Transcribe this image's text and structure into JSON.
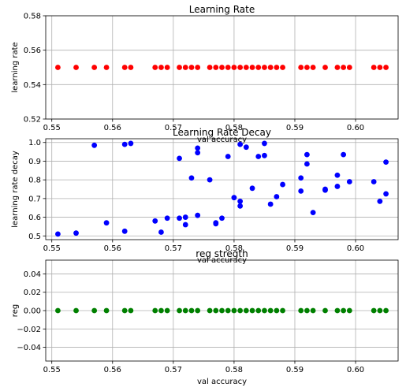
{
  "chart_data": [
    {
      "type": "scatter",
      "title": "Learning Rate",
      "xlabel": "val accuracy",
      "ylabel": "learning rate",
      "xlim": [
        0.549,
        0.607
      ],
      "ylim": [
        0.52,
        0.58
      ],
      "xticks": [
        "0.55",
        "0.56",
        "0.57",
        "0.58",
        "0.59",
        "0.60"
      ],
      "xtick_values": [
        0.55,
        0.56,
        0.57,
        0.58,
        0.59,
        0.6
      ],
      "yticks": [
        "0.52",
        "0.54",
        "0.56",
        "0.58"
      ],
      "ytick_values": [
        0.52,
        0.54,
        0.56,
        0.58
      ],
      "grid": true,
      "color": "#ff0000",
      "x": [
        0.551,
        0.554,
        0.557,
        0.559,
        0.562,
        0.563,
        0.567,
        0.568,
        0.569,
        0.571,
        0.572,
        0.573,
        0.574,
        0.576,
        0.577,
        0.578,
        0.579,
        0.58,
        0.581,
        0.582,
        0.583,
        0.584,
        0.585,
        0.586,
        0.587,
        0.588,
        0.591,
        0.592,
        0.593,
        0.595,
        0.597,
        0.598,
        0.599,
        0.603,
        0.604,
        0.605
      ],
      "y": [
        0.55,
        0.55,
        0.55,
        0.55,
        0.55,
        0.55,
        0.55,
        0.55,
        0.55,
        0.55,
        0.55,
        0.55,
        0.55,
        0.55,
        0.55,
        0.55,
        0.55,
        0.55,
        0.55,
        0.55,
        0.55,
        0.55,
        0.55,
        0.55,
        0.55,
        0.55,
        0.55,
        0.55,
        0.55,
        0.55,
        0.55,
        0.55,
        0.55,
        0.55,
        0.55,
        0.55
      ]
    },
    {
      "type": "scatter",
      "title": "Learning Rate Decay",
      "xlabel": "val accuracy",
      "ylabel": "learning rate decay",
      "xlim": [
        0.549,
        0.607
      ],
      "ylim": [
        0.48,
        1.02
      ],
      "xticks": [
        "0.55",
        "0.56",
        "0.57",
        "0.58",
        "0.59",
        "0.60"
      ],
      "xtick_values": [
        0.55,
        0.56,
        0.57,
        0.58,
        0.59,
        0.6
      ],
      "yticks": [
        "0.5",
        "0.6",
        "0.7",
        "0.8",
        "0.9",
        "1.0"
      ],
      "ytick_values": [
        0.5,
        0.6,
        0.7,
        0.8,
        0.9,
        1.0
      ],
      "grid": true,
      "color": "#0000ff",
      "x": [
        0.551,
        0.554,
        0.557,
        0.559,
        0.562,
        0.562,
        0.563,
        0.567,
        0.568,
        0.569,
        0.571,
        0.571,
        0.572,
        0.572,
        0.573,
        0.574,
        0.574,
        0.574,
        0.576,
        0.577,
        0.577,
        0.578,
        0.579,
        0.58,
        0.581,
        0.581,
        0.581,
        0.582,
        0.583,
        0.584,
        0.585,
        0.585,
        0.586,
        0.587,
        0.588,
        0.591,
        0.591,
        0.592,
        0.592,
        0.593,
        0.595,
        0.595,
        0.597,
        0.597,
        0.598,
        0.599,
        0.603,
        0.604,
        0.605,
        0.605
      ],
      "y": [
        0.51,
        0.515,
        0.985,
        0.57,
        0.525,
        0.99,
        0.995,
        0.58,
        0.52,
        0.595,
        0.915,
        0.595,
        0.56,
        0.6,
        0.81,
        0.61,
        0.945,
        0.97,
        0.8,
        0.57,
        0.565,
        0.595,
        0.925,
        0.705,
        0.685,
        0.66,
        0.99,
        0.975,
        0.755,
        0.925,
        0.995,
        0.93,
        0.67,
        0.71,
        0.775,
        0.74,
        0.81,
        0.885,
        0.935,
        0.625,
        0.745,
        0.75,
        0.765,
        0.825,
        0.935,
        0.79,
        0.79,
        0.685,
        0.725,
        0.895
      ]
    },
    {
      "type": "scatter",
      "title": "reg stregth",
      "xlabel": "val accuracy",
      "ylabel": "reg",
      "xlim": [
        0.549,
        0.607
      ],
      "ylim": [
        -0.055,
        0.055
      ],
      "xticks": [
        "0.55",
        "0.56",
        "0.57",
        "0.58",
        "0.59",
        "0.60"
      ],
      "xtick_values": [
        0.55,
        0.56,
        0.57,
        0.58,
        0.59,
        0.6
      ],
      "yticks": [
        "−0.04",
        "−0.02",
        "0.00",
        "0.02",
        "0.04"
      ],
      "ytick_values": [
        -0.04,
        -0.02,
        0.0,
        0.02,
        0.04
      ],
      "grid": true,
      "color": "#008000",
      "x": [
        0.551,
        0.554,
        0.557,
        0.559,
        0.562,
        0.563,
        0.567,
        0.568,
        0.569,
        0.571,
        0.572,
        0.573,
        0.574,
        0.576,
        0.577,
        0.578,
        0.579,
        0.58,
        0.581,
        0.582,
        0.583,
        0.584,
        0.585,
        0.586,
        0.587,
        0.588,
        0.591,
        0.592,
        0.593,
        0.595,
        0.597,
        0.598,
        0.599,
        0.603,
        0.604,
        0.605
      ],
      "y": [
        0,
        0,
        0,
        0,
        0,
        0,
        0,
        0,
        0,
        0,
        0,
        0,
        0,
        0,
        0,
        0,
        0,
        0,
        0,
        0,
        0,
        0,
        0,
        0,
        0,
        0,
        0,
        0,
        0,
        0,
        0,
        0,
        0,
        0,
        0,
        0
      ]
    }
  ]
}
